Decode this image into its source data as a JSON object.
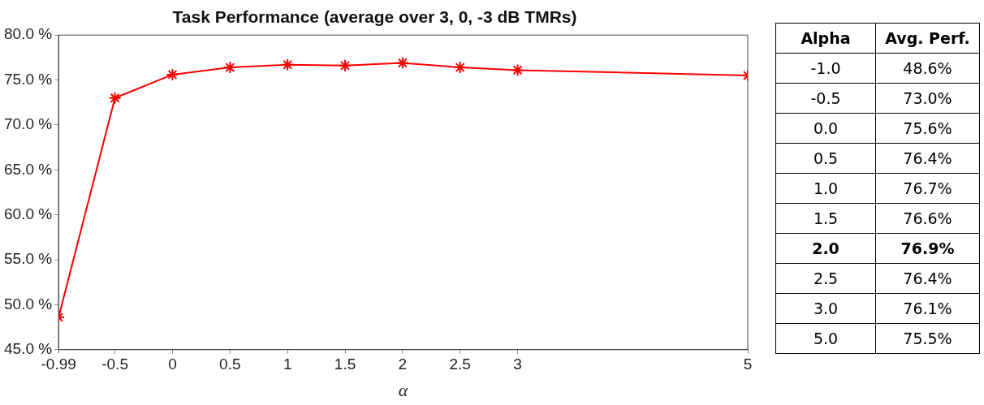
{
  "chart_data": {
    "type": "line",
    "title": "Task Performance (average over 3, 0, -3 dB TMRs)",
    "xlabel": "α",
    "x": [
      -0.99,
      -0.5,
      0,
      0.5,
      1,
      1.5,
      2,
      2.5,
      3,
      5
    ],
    "series": [
      {
        "color": "#ff0000",
        "values": [
          48.6,
          73.0,
          75.6,
          76.4,
          76.7,
          76.6,
          76.9,
          76.4,
          76.1,
          75.5
        ]
      }
    ],
    "xlim": [
      -0.99,
      5
    ],
    "xticks": [
      -0.99,
      -0.5,
      0,
      0.5,
      1,
      1.5,
      2,
      2.5,
      3,
      5
    ],
    "ylim": [
      45,
      80
    ],
    "yticks": [
      {
        "value": 45,
        "label": "45.0 %"
      },
      {
        "value": 50,
        "label": "50.0 %"
      },
      {
        "value": 55,
        "label": "55.0 %"
      },
      {
        "value": 60,
        "label": "60.0 %"
      },
      {
        "value": 65,
        "label": "65.0 %"
      },
      {
        "value": 70,
        "label": "70.0 %"
      },
      {
        "value": 75,
        "label": "75.0 %"
      },
      {
        "value": 80,
        "label": "80.0 %"
      }
    ],
    "annotations": [
      "Alpha",
      "Avg. Perf.",
      "-1.0",
      "48.6%",
      "-0.5",
      "73.0%",
      "0.0",
      "75.6%",
      "0.5",
      "76.4%",
      "1.0",
      "76.7%",
      "1.5",
      "76.6%",
      "2.0",
      "76.9%",
      "2.5",
      "76.4%",
      "3.0",
      "76.1%",
      "5.0",
      "75.5%"
    ],
    "marker": "cross",
    "line_style": "solid",
    "grid": false,
    "legend": false
  }
}
